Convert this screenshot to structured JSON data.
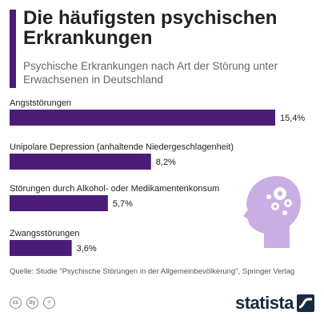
{
  "header": {
    "title": "Die häufigsten psychischen Erkrankungen",
    "subtitle": "Psychische Erkrankungen nach Art der Störung unter Erwachsenen in Deutschland"
  },
  "chart_data": {
    "type": "bar",
    "orientation": "horizontal",
    "categories": [
      "Angststörungen",
      "Unipolare Depression (anhaltende Niedergeschlagenheit)",
      "Störungen durch Alkohol- oder Medikamentenkonsum",
      "Zwangsstörungen"
    ],
    "values": [
      15.4,
      8.2,
      5.7,
      3.6
    ],
    "value_labels": [
      "15,4%",
      "8,2%",
      "5,7%",
      "3,6%"
    ],
    "unit": "%",
    "xlim": [
      0,
      15.4
    ],
    "bar_color": "#4b1c78",
    "grid": false
  },
  "footer": {
    "source": "Quelle: Studie \"Psychische Störungen in der Allgemeinbevölkerung\", Springer Verlag",
    "license_icons": [
      "cc",
      "by",
      "="
    ],
    "brand": "statista"
  },
  "colors": {
    "accent": "#4b1c78",
    "illustration": "#c9aee3",
    "brand": "#1a2a45"
  }
}
